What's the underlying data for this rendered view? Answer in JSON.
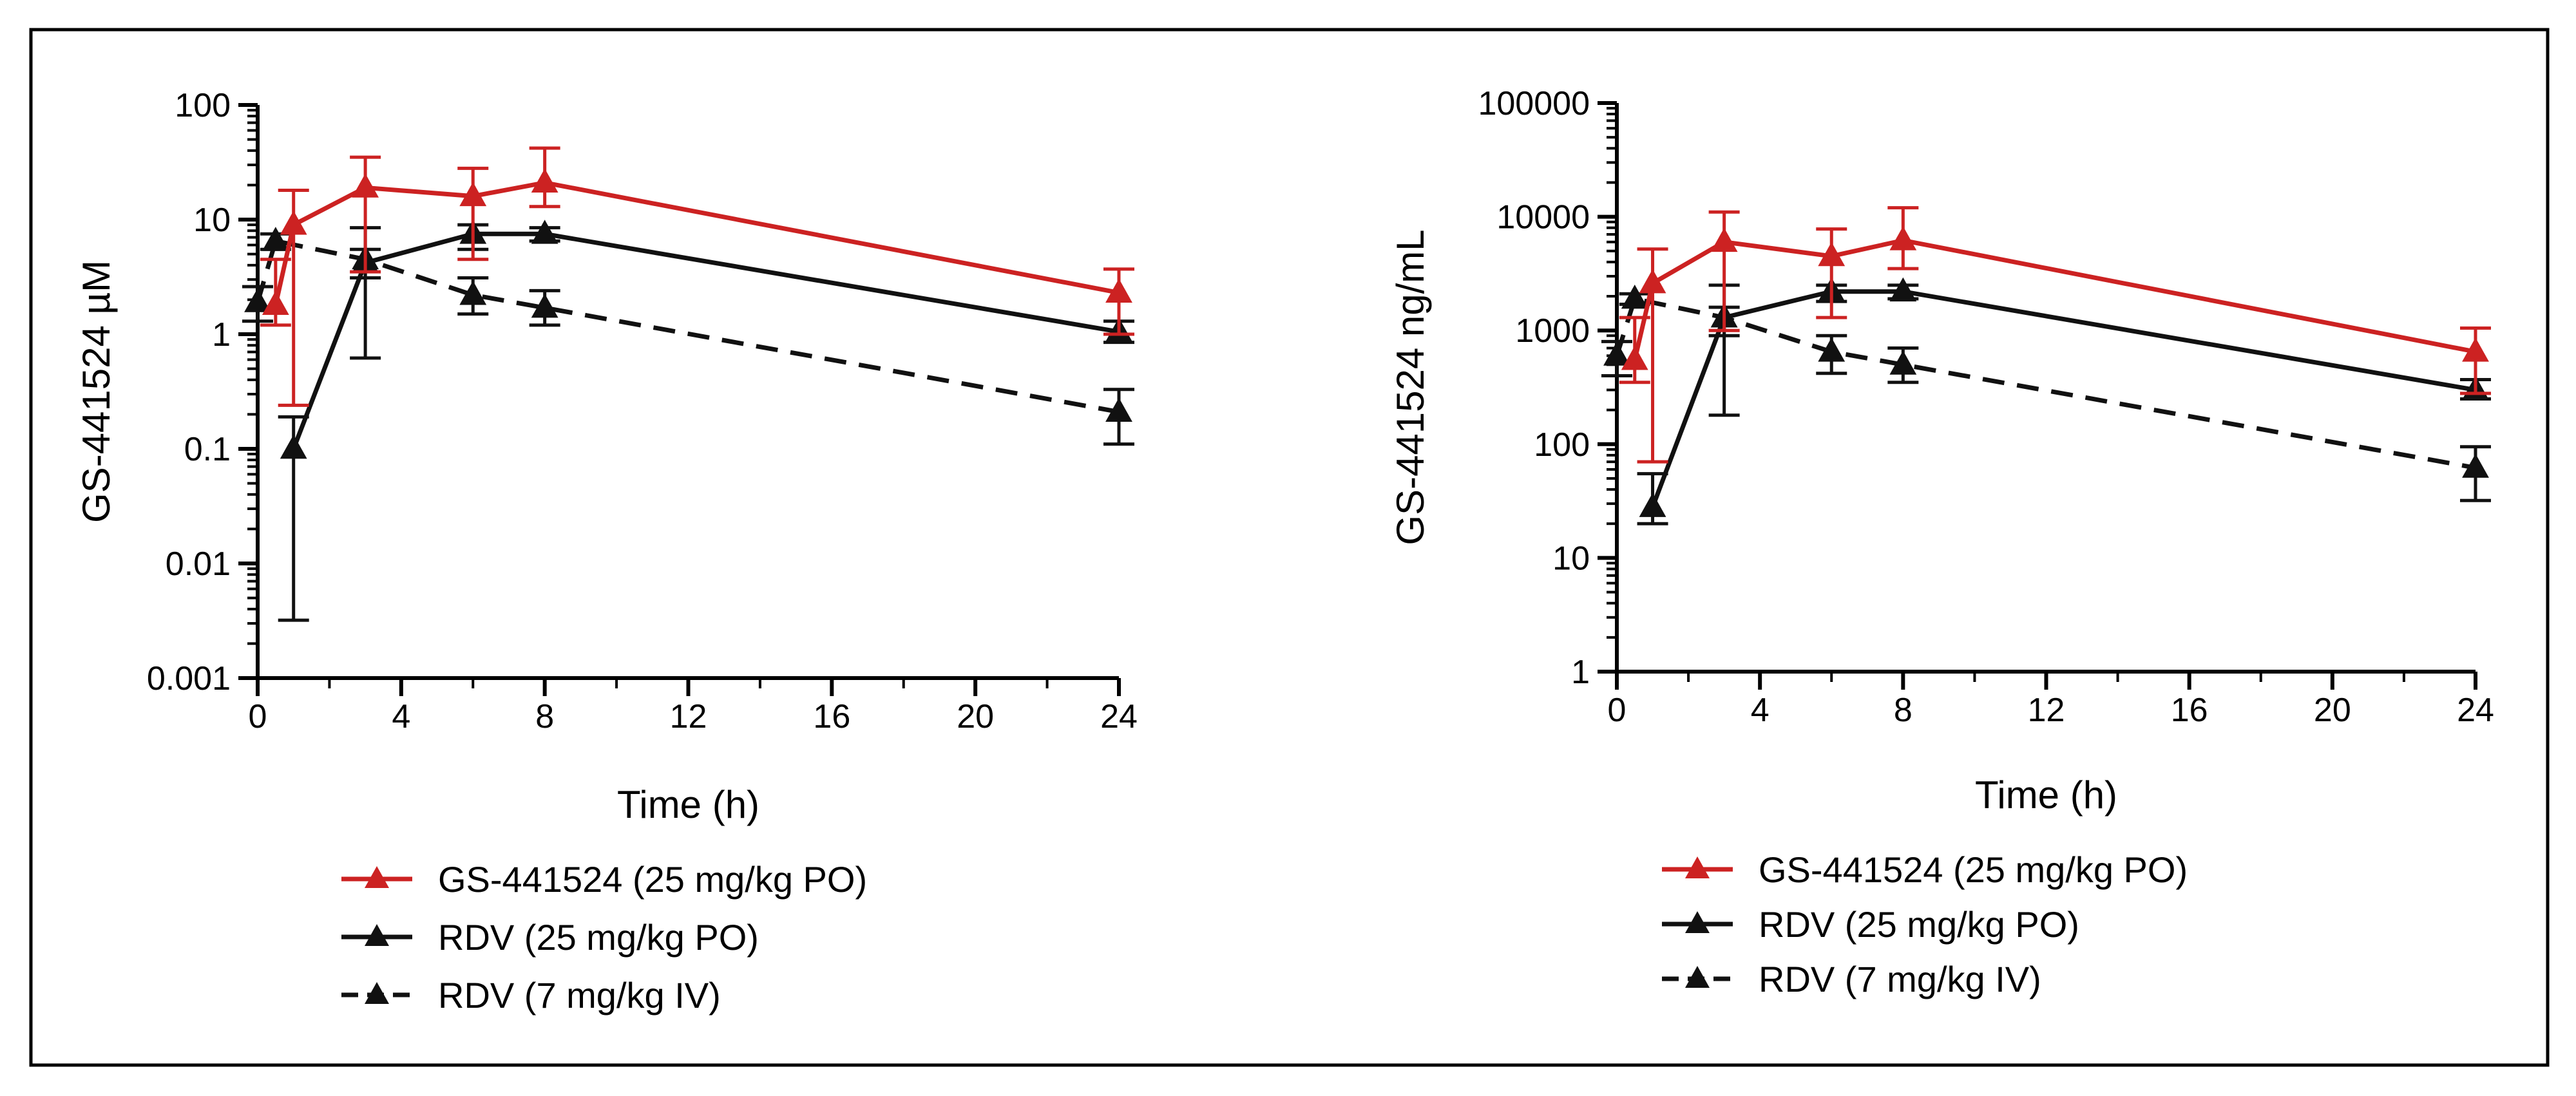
{
  "chart_data": [
    {
      "type": "line",
      "yscale": "log",
      "xlabel": "Time (h)",
      "ylabel": "GS-441524 µM",
      "xlim": [
        0,
        24
      ],
      "ylim": [
        0.001,
        100
      ],
      "xticks": [
        0,
        4,
        8,
        12,
        16,
        20,
        24
      ],
      "yticks": [
        0.001,
        0.01,
        0.1,
        1,
        10,
        100
      ],
      "ytick_labels": [
        "0.001",
        "0.01",
        "0.1",
        "1",
        "10",
        "100"
      ],
      "legend_position": "bottom",
      "series": [
        {
          "name": "GS-441524 (25 mg/kg PO)",
          "color": "#cc2222",
          "dash": "solid",
          "x": [
            0.5,
            1,
            3,
            6,
            8,
            24
          ],
          "y": [
            1.8,
            9,
            19,
            16,
            21,
            2.3
          ],
          "err_hi": [
            4.5,
            18,
            35,
            28,
            42,
            3.7
          ],
          "err_lo": [
            1.2,
            0.24,
            3.5,
            4.5,
            13,
            1.0
          ]
        },
        {
          "name": "RDV (25 mg/kg PO)",
          "color": "#111111",
          "dash": "solid",
          "x": [
            1,
            3,
            6,
            8,
            24
          ],
          "y": [
            0.1,
            4.2,
            7.5,
            7.5,
            1.05
          ],
          "err_hi": [
            0.19,
            8.5,
            9,
            8.5,
            1.3
          ],
          "err_lo": [
            0.0032,
            0.62,
            5.5,
            6.5,
            0.85
          ]
        },
        {
          "name": "RDV (7 mg/kg IV)",
          "color": "#111111",
          "dash": "dashed",
          "x": [
            0,
            0.5,
            3,
            6,
            8,
            24
          ],
          "y": [
            1.9,
            6.5,
            4.5,
            2.2,
            1.7,
            0.21
          ],
          "err_hi": [
            2.6,
            7.5,
            5.5,
            3.1,
            2.4,
            0.33
          ],
          "err_lo": [
            1.3,
            5.5,
            3.1,
            1.5,
            1.2,
            0.11
          ]
        }
      ]
    },
    {
      "type": "line",
      "yscale": "log",
      "xlabel": "Time (h)",
      "ylabel": "GS-441524 ng/mL",
      "xlim": [
        0,
        24
      ],
      "ylim": [
        1,
        100000
      ],
      "xticks": [
        0,
        4,
        8,
        12,
        16,
        20,
        24
      ],
      "yticks": [
        1,
        10,
        100,
        1000,
        10000,
        100000
      ],
      "ytick_labels": [
        "1",
        "10",
        "100",
        "1000",
        "10000",
        "100000"
      ],
      "legend_position": "bottom",
      "series": [
        {
          "name": "GS-441524 (25 mg/kg PO)",
          "color": "#cc2222",
          "dash": "solid",
          "x": [
            0.5,
            1,
            3,
            6,
            8,
            24
          ],
          "y": [
            550,
            2600,
            6000,
            4500,
            6200,
            650
          ],
          "err_hi": [
            1300,
            5200,
            11000,
            7800,
            12000,
            1050
          ],
          "err_lo": [
            350,
            70,
            1000,
            1300,
            3500,
            280
          ]
        },
        {
          "name": "RDV (25 mg/kg PO)",
          "color": "#111111",
          "dash": "solid",
          "x": [
            1,
            3,
            6,
            8,
            24
          ],
          "y": [
            28,
            1300,
            2200,
            2200,
            300
          ],
          "err_hi": [
            55,
            2500,
            2500,
            2500,
            370
          ],
          "err_lo": [
            20,
            180,
            1800,
            1900,
            250
          ]
        },
        {
          "name": "RDV (7 mg/kg IV)",
          "color": "#111111",
          "dash": "dashed",
          "x": [
            0,
            0.5,
            3,
            6,
            8,
            24
          ],
          "y": [
            600,
            1900,
            1300,
            650,
            500,
            62
          ],
          "err_hi": [
            800,
            2100,
            1600,
            900,
            700,
            95
          ],
          "err_lo": [
            400,
            1700,
            900,
            420,
            350,
            32
          ]
        }
      ]
    }
  ]
}
